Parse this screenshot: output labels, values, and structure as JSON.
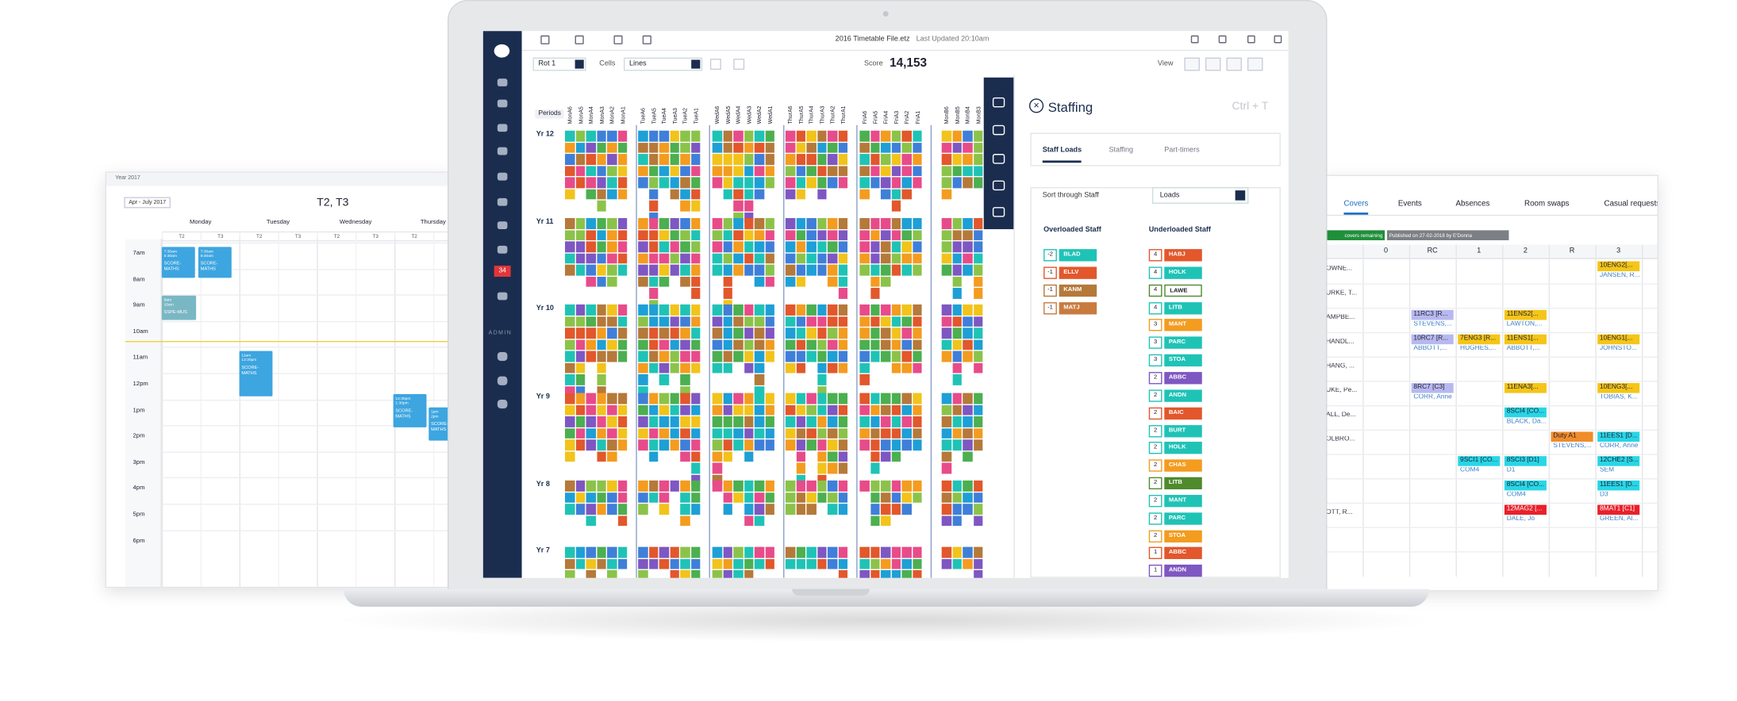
{
  "calendar": {
    "year": "Year 2017",
    "range": "Apr - July 2017",
    "term": "T2, T3",
    "days": [
      "Monday",
      "Tuesday",
      "Wednesday",
      "Thursday"
    ],
    "sub_cols": [
      "T2",
      "T3",
      "T2",
      "T3",
      "T2",
      "T3",
      "T2",
      "T3"
    ],
    "times": [
      "7am",
      "8am",
      "9am",
      "10am",
      "11am",
      "12pm",
      "1pm",
      "2pm",
      "3pm",
      "4pm",
      "5pm",
      "6pm"
    ],
    "events": [
      {
        "time": "7:30am",
        "end": "8:30am",
        "title": "SCORE-MATHS"
      },
      {
        "time": "7:30am",
        "end": "8:30am",
        "title": "SCORE-MATHS"
      },
      {
        "time": "9am",
        "end": "10am",
        "title": "SSPE-MUS"
      },
      {
        "time": "11am",
        "end": "12:30pm",
        "title": "SCORE-MATHS"
      },
      {
        "time": "12:30pm",
        "end": "1:30pm",
        "title": "SCORE-MATHS"
      },
      {
        "time": "1pm",
        "end": "2pm",
        "title": "SCORE-MATHS"
      }
    ]
  },
  "app": {
    "file": "2016 Timetable File.etz",
    "updated": "Last Updated 20:10am",
    "rot": "Rot 1",
    "cells_label": "Cells",
    "cells_value": "Lines",
    "score_label": "Score",
    "score": "14,153",
    "view": "View",
    "badge": "34",
    "admin": "ADMIN",
    "periods": "Periods",
    "period_columns": [
      [
        "MonA6",
        "MonA5",
        "MonA4",
        "MonA3",
        "MonA2",
        "MonA1"
      ],
      [
        "TueA6",
        "TueA5",
        "TueA4",
        "TueA3",
        "TueA2",
        "TueA1"
      ],
      [
        "WedA6",
        "WedA5",
        "WedA4",
        "WedA3",
        "WedA2",
        "WedA1"
      ],
      [
        "ThurA6",
        "ThurA5",
        "ThurA4",
        "ThurA3",
        "ThurA2",
        "ThurA1"
      ],
      [
        "FriA6",
        "FriA5",
        "FriA4",
        "FriA3",
        "FriA2",
        "FriA1"
      ],
      [
        "MonB6",
        "MonB5",
        "MonB4",
        "MonB3"
      ]
    ],
    "years": [
      "Yr 12",
      "Yr 11",
      "Yr 10",
      "Yr 9",
      "Yr 8",
      "Yr 7"
    ]
  },
  "staffing": {
    "title": "Staffing",
    "shortcut": "Ctrl + T",
    "tabs": [
      "Staff Loads",
      "Staffing",
      "Part-timers"
    ],
    "sort_label": "Sort through Staff",
    "sort_value": "Loads",
    "overloaded_title": "Overloaded Staff",
    "underloaded_title": "Underloaded Staff",
    "overloaded": [
      {
        "load": "-2",
        "code": "BLAD",
        "color": "#1fc3b6"
      },
      {
        "load": "-1",
        "code": "ELLV",
        "color": "#e2572b"
      },
      {
        "load": "-1",
        "code": "KANM",
        "color": "#b5793a"
      },
      {
        "load": "-1",
        "code": "MATJ",
        "color": "#c97a3f"
      }
    ],
    "underloaded": [
      {
        "load": "4",
        "code": "HABJ",
        "color": "#e2572b"
      },
      {
        "load": "4",
        "code": "HOLK",
        "color": "#1fc3b6"
      },
      {
        "load": "4",
        "code": "LAWE",
        "color": "#ffffff"
      },
      {
        "load": "4",
        "code": "LITB",
        "color": "#1fc3b6"
      },
      {
        "load": "3",
        "code": "MANT",
        "color": "#f39c1f"
      },
      {
        "load": "3",
        "code": "PARC",
        "color": "#1fc3b6"
      },
      {
        "load": "3",
        "code": "STOA",
        "color": "#1fc3b6"
      },
      {
        "load": "2",
        "code": "ABBC",
        "color": "#7e57c2"
      },
      {
        "load": "2",
        "code": "ANDN",
        "color": "#1fc3b6"
      },
      {
        "load": "2",
        "code": "BAIC",
        "color": "#e2572b"
      },
      {
        "load": "2",
        "code": "BURT",
        "color": "#1fc3b6"
      },
      {
        "load": "2",
        "code": "HOLK",
        "color": "#1fc3b6"
      },
      {
        "load": "2",
        "code": "CHAS",
        "color": "#f39c1f"
      },
      {
        "load": "2",
        "code": "LITB",
        "color": "#4f8a2c"
      },
      {
        "load": "2",
        "code": "MANT",
        "color": "#1fc3b6"
      },
      {
        "load": "2",
        "code": "PARC",
        "color": "#1fc3b6"
      },
      {
        "load": "2",
        "code": "STOA",
        "color": "#f39c1f"
      },
      {
        "load": "1",
        "code": "ABBC",
        "color": "#e2572b"
      },
      {
        "load": "1",
        "code": "ANDN",
        "color": "#7e57c2"
      }
    ]
  },
  "covers": {
    "tabs": [
      "Covers",
      "Events",
      "Absences",
      "Room swaps",
      "Casual requests"
    ],
    "remaining": "covers remaining",
    "published": "Published on 27-02-2018 by E'Donna",
    "columns": [
      "0",
      "RC",
      "1",
      "2",
      "R",
      "3"
    ],
    "rows": [
      {
        "name": "OWNE...",
        "cells": [
          null,
          null,
          null,
          null,
          null,
          {
            "text": "10ENG2[...",
            "sub": "JANSEN, R...",
            "color": "#f5c518"
          }
        ]
      },
      {
        "name": "URKE, T...",
        "cells": [
          null,
          null,
          null,
          null,
          null,
          null
        ]
      },
      {
        "name": "AMPBE...",
        "cells": [
          null,
          {
            "text": "11RC3 [R...",
            "sub": "STEVENS,...",
            "color": "#b8b8f0"
          },
          null,
          {
            "text": "11ENS2[...",
            "sub": "LAWTON,...",
            "color": "#f5c518"
          },
          null,
          null
        ]
      },
      {
        "name": "HANDL...",
        "cells": [
          null,
          {
            "text": "10RC7 [R...",
            "sub": "ABBOTT,...",
            "color": "#b8b8f0"
          },
          {
            "text": "7ENG3 [R...",
            "sub": "HUGHES,...",
            "color": "#f5c518"
          },
          {
            "text": "11ENS1[...",
            "sub": "ABBOTT,...",
            "color": "#f5c518"
          },
          null,
          {
            "text": "10ENG1[...",
            "sub": "JOHNSTO...",
            "color": "#f5c518"
          }
        ]
      },
      {
        "name": "HANG, ...",
        "cells": [
          null,
          null,
          null,
          null,
          null,
          null
        ]
      },
      {
        "name": "UKE, Pe...",
        "cells": [
          null,
          {
            "text": "8RC7 [C3]",
            "sub": "CORR, Anne",
            "color": "#b8b8f0"
          },
          null,
          {
            "text": "11ENA3[...",
            "color": "#f5c518"
          },
          null,
          {
            "text": "10ENG3[...",
            "sub": "TOBIAS, K...",
            "color": "#f5c518"
          }
        ]
      },
      {
        "name": "ALL, De...",
        "cells": [
          null,
          null,
          null,
          {
            "text": "8SCI4 [CO...",
            "sub": "BLACK, Da...",
            "color": "#28d6e6"
          },
          null,
          null
        ]
      },
      {
        "name": "OLBRO...",
        "cells": [
          null,
          null,
          null,
          null,
          {
            "text": "Duty A1",
            "sub": "STEVENS,...",
            "color": "#f08c2a"
          },
          {
            "text": "11EES1 [D...",
            "sub": "CORR, Anne",
            "color": "#28d6e6"
          }
        ]
      },
      {
        "cells": [
          null,
          null,
          {
            "text": "9SCI1 [CO...",
            "sub": "COM4",
            "color": "#28d6e6"
          },
          {
            "text": "8SCI3 [D1]",
            "sub": "D1",
            "color": "#28d6e6"
          },
          null,
          {
            "text": "12CHE2 [S...",
            "sub": "SEM",
            "color": "#28d6e6"
          }
        ]
      },
      {
        "cells": [
          null,
          null,
          null,
          {
            "text": "8SCI4 [CO...",
            "sub": "COM4",
            "color": "#28d6e6"
          },
          null,
          {
            "text": "11EES1 [D...",
            "sub": "D3",
            "color": "#28d6e6"
          }
        ]
      },
      {
        "name": "OTT, R...",
        "cells": [
          null,
          null,
          null,
          {
            "text": "12MAG2 [...",
            "sub": "DALE, Jo",
            "color": "#e8202a"
          },
          null,
          {
            "text": "8MAT1 [C1]",
            "sub": "GREEN, Al...",
            "color": "#e8202a"
          }
        ]
      },
      {
        "cells": [
          null,
          null,
          null,
          null,
          null,
          null
        ]
      }
    ]
  }
}
